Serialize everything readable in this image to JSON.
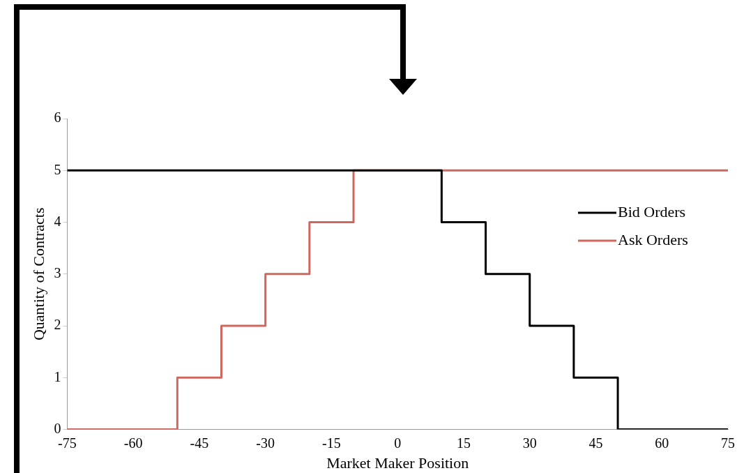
{
  "chart_data": {
    "type": "step",
    "xlabel": "Market Maker Position",
    "ylabel": "Quantity of Contracts",
    "xlim": [
      -75,
      75
    ],
    "xticks": [
      -75,
      -60,
      -45,
      -30,
      -15,
      0,
      15,
      30,
      45,
      60,
      75
    ],
    "ylim": [
      0,
      6
    ],
    "yticks": [
      0,
      1,
      2,
      3,
      4,
      5,
      6
    ],
    "grid": false,
    "legend": "right",
    "marker": "none",
    "line_style": "solid",
    "series": [
      {
        "name": "Bid Orders",
        "color": "#000000",
        "x": [
          -75,
          10,
          20,
          30,
          40,
          50,
          75
        ],
        "values": [
          5,
          4,
          3,
          2,
          1,
          0,
          0
        ]
      },
      {
        "name": "Ask Orders",
        "color": "#d0675f",
        "x": [
          -75,
          -50,
          -40,
          -30,
          -20,
          -10,
          75
        ],
        "values": [
          0,
          1,
          2,
          3,
          4,
          5,
          5
        ]
      }
    ]
  }
}
